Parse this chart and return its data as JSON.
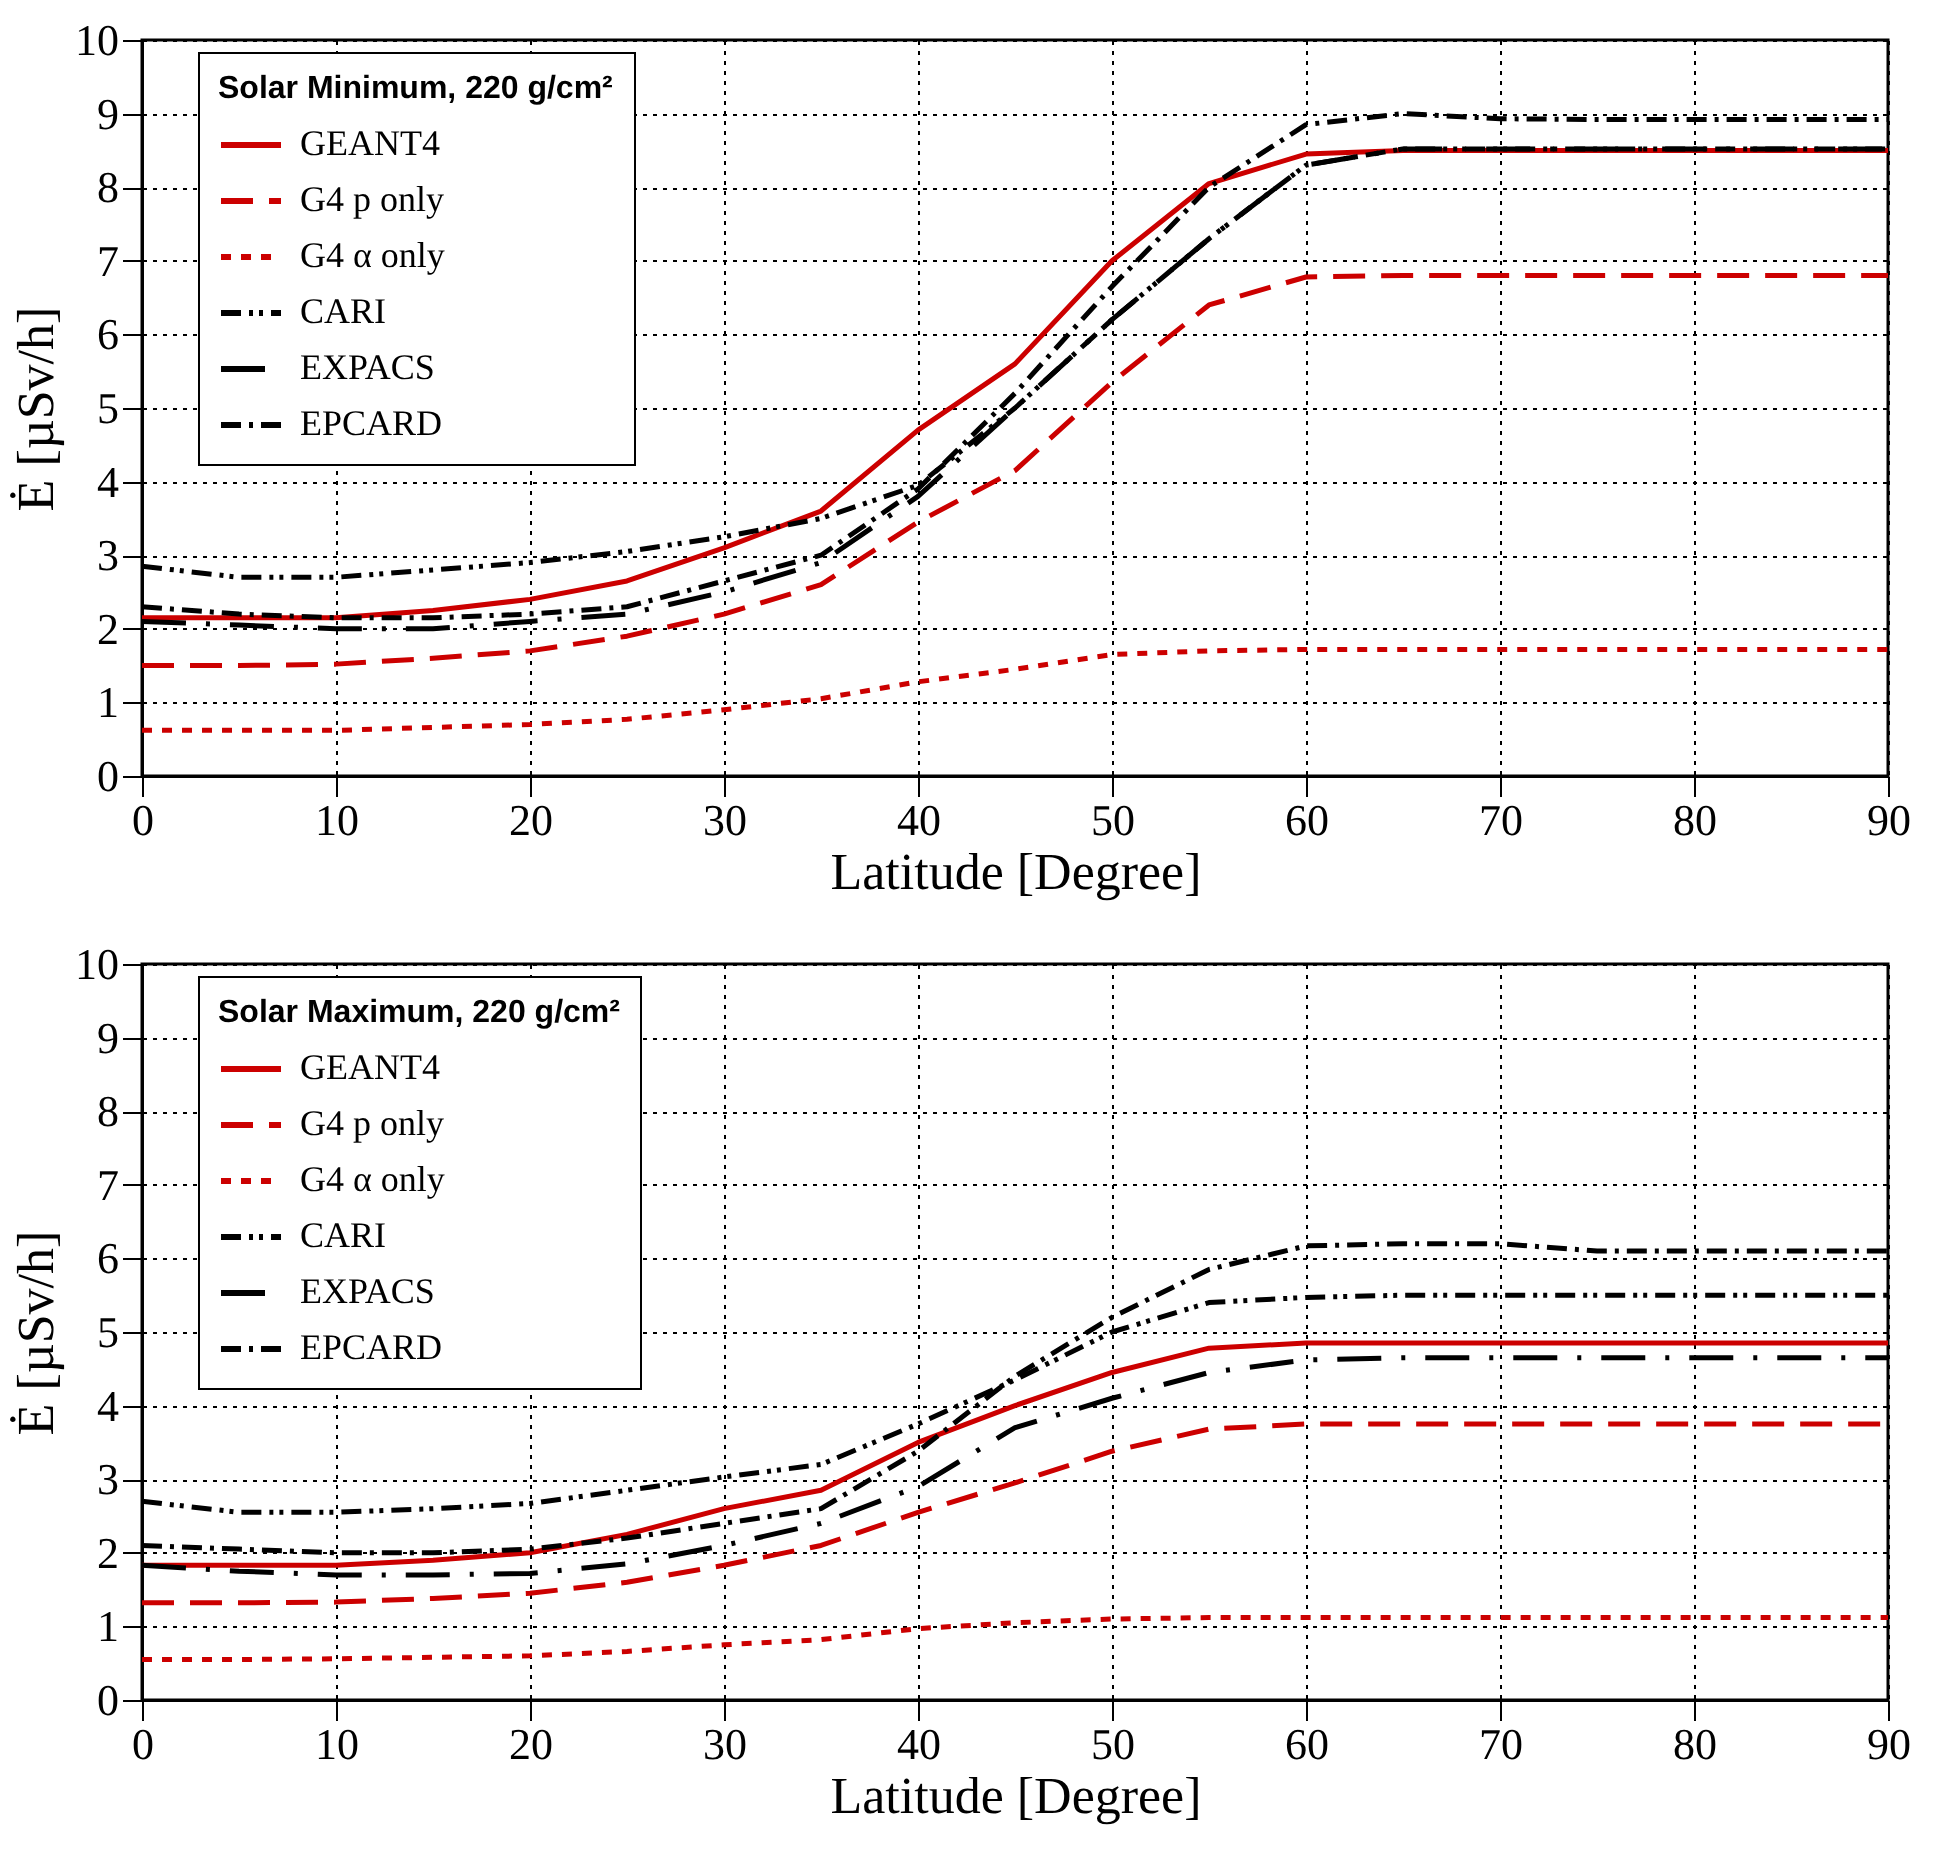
{
  "chart_data": [
    {
      "type": "line",
      "legend_title": "Solar Minimum, 220 g/cm²",
      "xlabel": "Latitude [Degree]",
      "ylabel": "Ė [µSv/h]",
      "x": [
        0,
        5,
        10,
        15,
        20,
        25,
        30,
        35,
        40,
        45,
        50,
        55,
        60,
        65,
        70,
        75,
        80,
        85,
        90
      ],
      "xlim": [
        0,
        90
      ],
      "xticks": [
        0,
        10,
        20,
        30,
        40,
        50,
        60,
        70,
        80,
        90
      ],
      "ylim": [
        0,
        10
      ],
      "yticks": [
        0,
        1,
        2,
        3,
        4,
        5,
        6,
        7,
        8,
        9,
        10
      ],
      "grid": true,
      "legend": "top left",
      "series": [
        {
          "name": "GEANT4",
          "color": "#cc0000",
          "line_style": "solid",
          "values": [
            2.15,
            2.15,
            2.15,
            2.25,
            2.4,
            2.65,
            3.1,
            3.6,
            4.7,
            5.6,
            7.0,
            8.05,
            8.45,
            8.5,
            8.5,
            8.5,
            8.5,
            8.5,
            8.5
          ]
        },
        {
          "name": "G4 p only",
          "color": "#cc0000",
          "line_style": "dashed",
          "values": [
            1.5,
            1.5,
            1.52,
            1.6,
            1.7,
            1.9,
            2.2,
            2.6,
            3.45,
            4.15,
            5.35,
            6.4,
            6.78,
            6.8,
            6.8,
            6.8,
            6.8,
            6.8,
            6.8
          ]
        },
        {
          "name": "G4 α only",
          "color": "#cc0000",
          "line_style": "dotted",
          "values": [
            0.62,
            0.62,
            0.62,
            0.66,
            0.7,
            0.77,
            0.9,
            1.05,
            1.28,
            1.45,
            1.65,
            1.7,
            1.72,
            1.72,
            1.72,
            1.72,
            1.72,
            1.72,
            1.72
          ]
        },
        {
          "name": "CARI",
          "color": "#000000",
          "line_style": "dashdotdot",
          "values": [
            2.85,
            2.7,
            2.7,
            2.8,
            2.9,
            3.05,
            3.25,
            3.5,
            3.95,
            5.0,
            6.2,
            7.3,
            8.3,
            8.52,
            8.52,
            8.52,
            8.52,
            8.52,
            8.52
          ]
        },
        {
          "name": "EXPACS",
          "color": "#000000",
          "line_style": "longdashdot",
          "values": [
            2.1,
            2.05,
            2.0,
            2.0,
            2.1,
            2.2,
            2.5,
            2.9,
            3.8,
            5.0,
            6.2,
            7.3,
            8.3,
            8.52,
            8.52,
            8.52,
            8.52,
            8.52,
            8.52
          ]
        },
        {
          "name": "EPCARD",
          "color": "#000000",
          "line_style": "dashdot",
          "values": [
            2.3,
            2.2,
            2.15,
            2.15,
            2.2,
            2.3,
            2.65,
            3.0,
            3.9,
            5.2,
            6.65,
            8.0,
            8.85,
            9.0,
            8.93,
            8.92,
            8.92,
            8.92,
            8.92
          ]
        }
      ]
    },
    {
      "type": "line",
      "legend_title": "Solar Maximum, 220 g/cm²",
      "xlabel": "Latitude [Degree]",
      "ylabel": "Ė [µSv/h]",
      "x": [
        0,
        5,
        10,
        15,
        20,
        25,
        30,
        35,
        40,
        45,
        50,
        55,
        60,
        65,
        70,
        75,
        80,
        85,
        90
      ],
      "xlim": [
        0,
        90
      ],
      "xticks": [
        0,
        10,
        20,
        30,
        40,
        50,
        60,
        70,
        80,
        90
      ],
      "ylim": [
        0,
        10
      ],
      "yticks": [
        0,
        1,
        2,
        3,
        4,
        5,
        6,
        7,
        8,
        9,
        10
      ],
      "grid": true,
      "legend": "top left",
      "series": [
        {
          "name": "GEANT4",
          "color": "#cc0000",
          "line_style": "solid",
          "values": [
            1.83,
            1.83,
            1.83,
            1.9,
            2.0,
            2.25,
            2.6,
            2.85,
            3.5,
            4.0,
            4.45,
            4.78,
            4.85,
            4.85,
            4.85,
            4.85,
            4.85,
            4.85,
            4.85
          ]
        },
        {
          "name": "G4 p only",
          "color": "#cc0000",
          "line_style": "dashed",
          "values": [
            1.32,
            1.32,
            1.33,
            1.38,
            1.45,
            1.6,
            1.83,
            2.1,
            2.55,
            2.95,
            3.38,
            3.68,
            3.75,
            3.75,
            3.75,
            3.75,
            3.75,
            3.75,
            3.75
          ]
        },
        {
          "name": "G4 α only",
          "color": "#cc0000",
          "line_style": "dotted",
          "values": [
            0.55,
            0.55,
            0.56,
            0.58,
            0.6,
            0.66,
            0.75,
            0.82,
            0.97,
            1.05,
            1.1,
            1.12,
            1.12,
            1.12,
            1.12,
            1.12,
            1.12,
            1.12,
            1.12
          ]
        },
        {
          "name": "CARI",
          "color": "#000000",
          "line_style": "dashdotdot",
          "values": [
            2.7,
            2.55,
            2.55,
            2.6,
            2.67,
            2.85,
            3.03,
            3.2,
            3.75,
            4.35,
            5.0,
            5.4,
            5.47,
            5.5,
            5.5,
            5.5,
            5.5,
            5.5,
            5.5
          ]
        },
        {
          "name": "EXPACS",
          "color": "#000000",
          "line_style": "longdashdot",
          "values": [
            1.83,
            1.75,
            1.7,
            1.7,
            1.72,
            1.85,
            2.1,
            2.4,
            2.9,
            3.7,
            4.1,
            4.45,
            4.62,
            4.65,
            4.65,
            4.65,
            4.65,
            4.65,
            4.65
          ]
        },
        {
          "name": "EPCARD",
          "color": "#000000",
          "line_style": "dashdot",
          "values": [
            2.1,
            2.05,
            2.0,
            2.0,
            2.05,
            2.2,
            2.4,
            2.6,
            3.38,
            4.4,
            5.2,
            5.85,
            6.17,
            6.2,
            6.2,
            6.1,
            6.1,
            6.1,
            6.1
          ]
        }
      ]
    }
  ]
}
